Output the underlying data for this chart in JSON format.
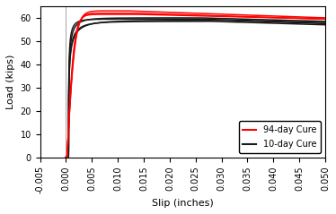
{
  "title": "",
  "xlabel": "Slip (inches)",
  "ylabel": "Load (kips)",
  "xlim": [
    -0.005,
    0.05
  ],
  "ylim": [
    0,
    65
  ],
  "yticks": [
    0,
    10,
    20,
    30,
    40,
    50,
    60
  ],
  "xticks": [
    -0.005,
    0.0,
    0.005,
    0.01,
    0.015,
    0.02,
    0.025,
    0.03,
    0.035,
    0.04,
    0.045,
    0.05
  ],
  "red_color": "#ff0000",
  "black_color": "#1a1a1a",
  "legend_red": "94-day Cure",
  "legend_black": "10-day Cure",
  "red_curves": [
    {
      "x0": 0.0002,
      "plateau": 62.0,
      "k": 700,
      "drop": 2.5,
      "drop_start": 0.013
    },
    {
      "x0": 0.0002,
      "plateau": 63.0,
      "k": 650,
      "drop": 3.0,
      "drop_start": 0.012
    },
    {
      "x0": 0.0002,
      "plateau": 61.5,
      "k": 750,
      "drop": 2.0,
      "drop_start": 0.014
    }
  ],
  "black_curves": [
    {
      "x0": 0.0005,
      "plateau": 59.5,
      "k": 55,
      "n": 0.42,
      "drop": 1.5,
      "peak_x": 0.025
    },
    {
      "x0": 0.0005,
      "plateau": 60.0,
      "k": 45,
      "n": 0.42,
      "drop": 1.5,
      "peak_x": 0.026
    },
    {
      "x0": 0.0005,
      "plateau": 58.5,
      "k": 35,
      "n": 0.4,
      "drop": 1.5,
      "peak_x": 0.028
    },
    {
      "x0": 0.0005,
      "plateau": 59.0,
      "k": 28,
      "n": 0.38,
      "drop": 1.5,
      "peak_x": 0.03
    }
  ]
}
